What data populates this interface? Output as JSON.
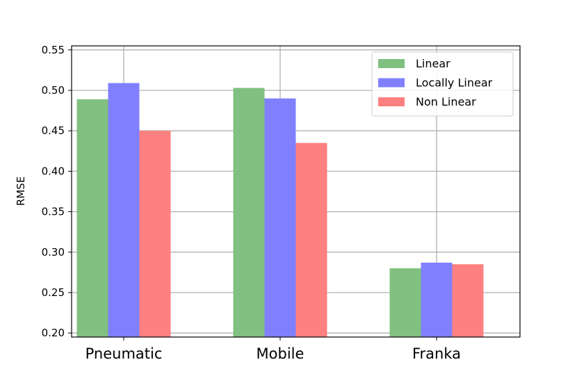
{
  "chart_data": {
    "type": "bar",
    "categories": [
      "Pneumatic",
      "Mobile",
      "Franka"
    ],
    "series": [
      {
        "name": "Linear",
        "values": [
          0.489,
          0.503,
          0.28
        ],
        "color": "#80c080"
      },
      {
        "name": "Locally Linear",
        "values": [
          0.509,
          0.49,
          0.287
        ],
        "color": "#8080ff"
      },
      {
        "name": "Non Linear",
        "values": [
          0.45,
          0.435,
          0.285
        ],
        "color": "#ff8080"
      }
    ],
    "ylabel": "RMSE",
    "xlabel": "",
    "title": "",
    "ylim": [
      0.195,
      0.555
    ],
    "yticks": [
      0.2,
      0.25,
      0.3,
      0.35,
      0.4,
      0.45,
      0.5,
      0.55
    ],
    "ytick_labels": [
      "0.20",
      "0.25",
      "0.30",
      "0.35",
      "0.40",
      "0.45",
      "0.50",
      "0.55"
    ],
    "grid": true,
    "legend_position": "top-right"
  }
}
